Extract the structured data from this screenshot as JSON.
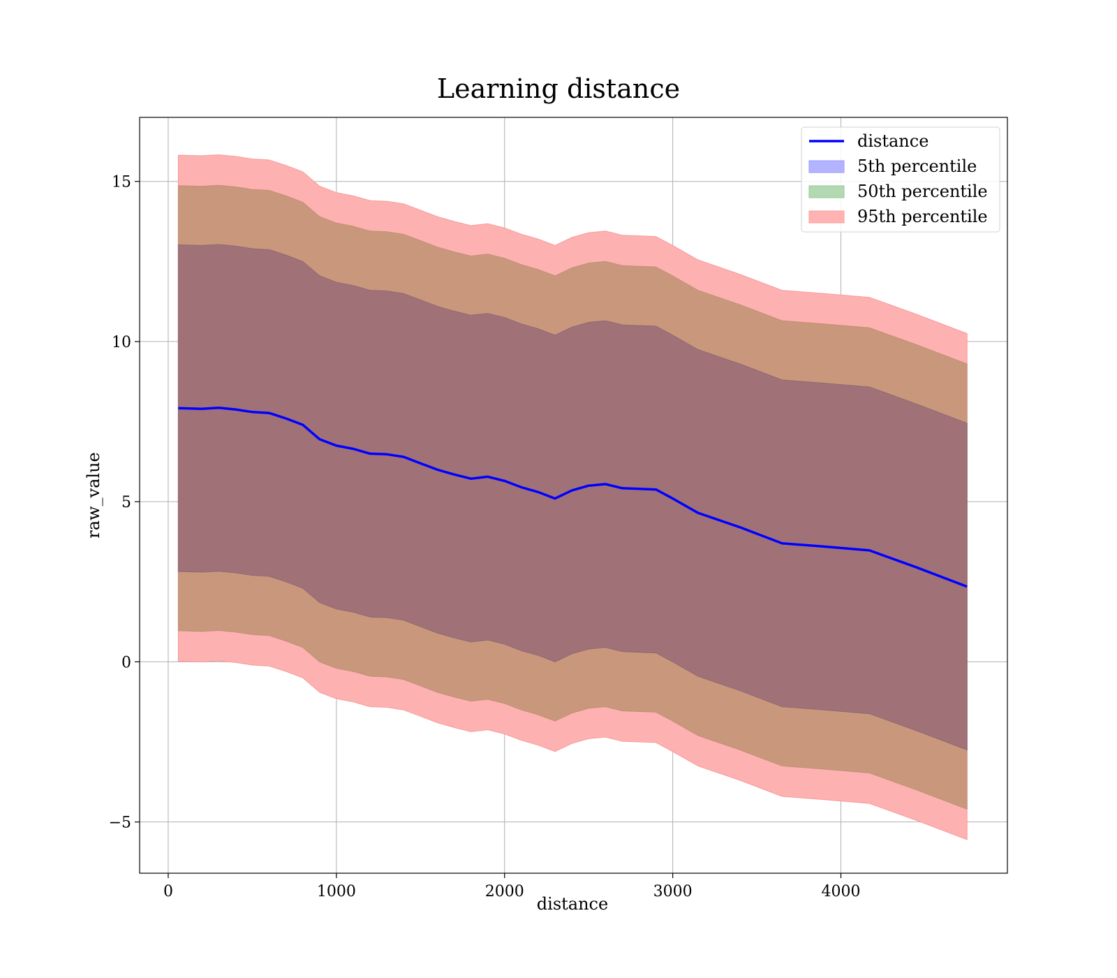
{
  "chart_data": {
    "type": "area",
    "title": "Learning distance",
    "xlabel": "distance",
    "ylabel": "raw_value",
    "xlim": [
      -170,
      4990
    ],
    "ylim": [
      -6.6,
      17.0
    ],
    "x_ticks": [
      0,
      1000,
      2000,
      3000,
      4000
    ],
    "y_ticks": [
      -5,
      0,
      5,
      10,
      15
    ],
    "y_tick_labels": [
      "−5",
      "0",
      "5",
      "10",
      "15"
    ],
    "grid": true,
    "legend_position": "top-right",
    "colors": {
      "line": "#0000ff",
      "band_5th": "#0000ff",
      "band_50th": "#008000",
      "band_95th": "#ff0000",
      "blend_5th": "#a07278",
      "blend_50th": "#c9987c",
      "blend_95th": "#feb1b1"
    },
    "legend": [
      {
        "label": "distance",
        "kind": "line",
        "color": "#0000ff"
      },
      {
        "label": "5th percentile",
        "kind": "band",
        "color": "#0000ff"
      },
      {
        "label": "50th percentile",
        "kind": "band",
        "color": "#008000"
      },
      {
        "label": "95th percentile",
        "kind": "band",
        "color": "#ff0000"
      }
    ],
    "x": [
      60,
      200,
      300,
      400,
      500,
      600,
      700,
      800,
      900,
      1000,
      1100,
      1200,
      1300,
      1400,
      1500,
      1600,
      1700,
      1800,
      1900,
      2000,
      2100,
      2200,
      2300,
      2400,
      2500,
      2600,
      2700,
      2800,
      2900,
      3000,
      3150,
      3400,
      3650,
      3900,
      4170,
      4450,
      4750
    ],
    "series": [
      {
        "name": "distance",
        "values": [
          7.92,
          7.9,
          7.93,
          7.88,
          7.8,
          7.77,
          7.6,
          7.4,
          6.95,
          6.75,
          6.65,
          6.5,
          6.48,
          6.4,
          6.2,
          6.0,
          5.85,
          5.72,
          5.78,
          5.65,
          5.45,
          5.3,
          5.1,
          5.35,
          5.5,
          5.55,
          5.42,
          5.4,
          5.38,
          5.1,
          4.65,
          4.2,
          3.7,
          3.6,
          3.48,
          2.95,
          2.35
        ]
      },
      {
        "name": "5th percentile",
        "lower": [
          2.82,
          2.8,
          2.83,
          2.78,
          2.7,
          2.67,
          2.5,
          2.3,
          1.85,
          1.65,
          1.55,
          1.4,
          1.38,
          1.3,
          1.1,
          0.9,
          0.75,
          0.62,
          0.68,
          0.55,
          0.35,
          0.2,
          0.0,
          0.25,
          0.4,
          0.45,
          0.32,
          0.3,
          0.28,
          0.0,
          -0.45,
          -0.9,
          -1.4,
          -1.5,
          -1.62,
          -2.15,
          -2.75
        ],
        "upper": [
          13.02,
          13.0,
          13.03,
          12.98,
          12.9,
          12.87,
          12.7,
          12.5,
          12.05,
          11.85,
          11.75,
          11.6,
          11.58,
          11.5,
          11.3,
          11.1,
          10.95,
          10.82,
          10.88,
          10.75,
          10.55,
          10.4,
          10.2,
          10.45,
          10.6,
          10.65,
          10.52,
          10.5,
          10.48,
          10.2,
          9.75,
          9.3,
          8.8,
          8.7,
          8.58,
          8.05,
          7.45
        ]
      },
      {
        "name": "50th percentile",
        "lower": [
          0.97,
          0.95,
          0.98,
          0.93,
          0.85,
          0.82,
          0.65,
          0.45,
          0.0,
          -0.2,
          -0.3,
          -0.45,
          -0.47,
          -0.55,
          -0.75,
          -0.95,
          -1.1,
          -1.23,
          -1.17,
          -1.3,
          -1.5,
          -1.65,
          -1.85,
          -1.6,
          -1.45,
          -1.4,
          -1.53,
          -1.55,
          -1.57,
          -1.85,
          -2.3,
          -2.75,
          -3.25,
          -3.35,
          -3.47,
          -4.0,
          -4.6
        ],
        "upper": [
          14.87,
          14.85,
          14.88,
          14.83,
          14.75,
          14.72,
          14.55,
          14.35,
          13.9,
          13.7,
          13.6,
          13.45,
          13.43,
          13.35,
          13.15,
          12.95,
          12.8,
          12.67,
          12.73,
          12.6,
          12.4,
          12.25,
          12.05,
          12.3,
          12.45,
          12.5,
          12.37,
          12.35,
          12.33,
          12.05,
          11.6,
          11.15,
          10.65,
          10.55,
          10.43,
          9.9,
          9.3
        ]
      },
      {
        "name": "95th percentile",
        "lower": [
          0.02,
          0.0,
          0.03,
          -0.02,
          -0.1,
          -0.13,
          -0.3,
          -0.5,
          -0.95,
          -1.15,
          -1.25,
          -1.4,
          -1.42,
          -1.5,
          -1.7,
          -1.9,
          -2.05,
          -2.18,
          -2.12,
          -2.25,
          -2.45,
          -2.6,
          -2.8,
          -2.55,
          -2.4,
          -2.35,
          -2.48,
          -2.5,
          -2.52,
          -2.8,
          -3.25,
          -3.7,
          -4.2,
          -4.3,
          -4.42,
          -4.95,
          -5.55
        ],
        "upper": [
          15.82,
          15.8,
          15.83,
          15.78,
          15.7,
          15.67,
          15.5,
          15.3,
          14.85,
          14.65,
          14.55,
          14.4,
          14.38,
          14.3,
          14.1,
          13.9,
          13.75,
          13.62,
          13.68,
          13.55,
          13.35,
          13.2,
          13.0,
          13.25,
          13.4,
          13.45,
          13.32,
          13.3,
          13.28,
          13.0,
          12.55,
          12.1,
          11.6,
          11.5,
          11.38,
          10.85,
          10.25
        ]
      }
    ]
  }
}
